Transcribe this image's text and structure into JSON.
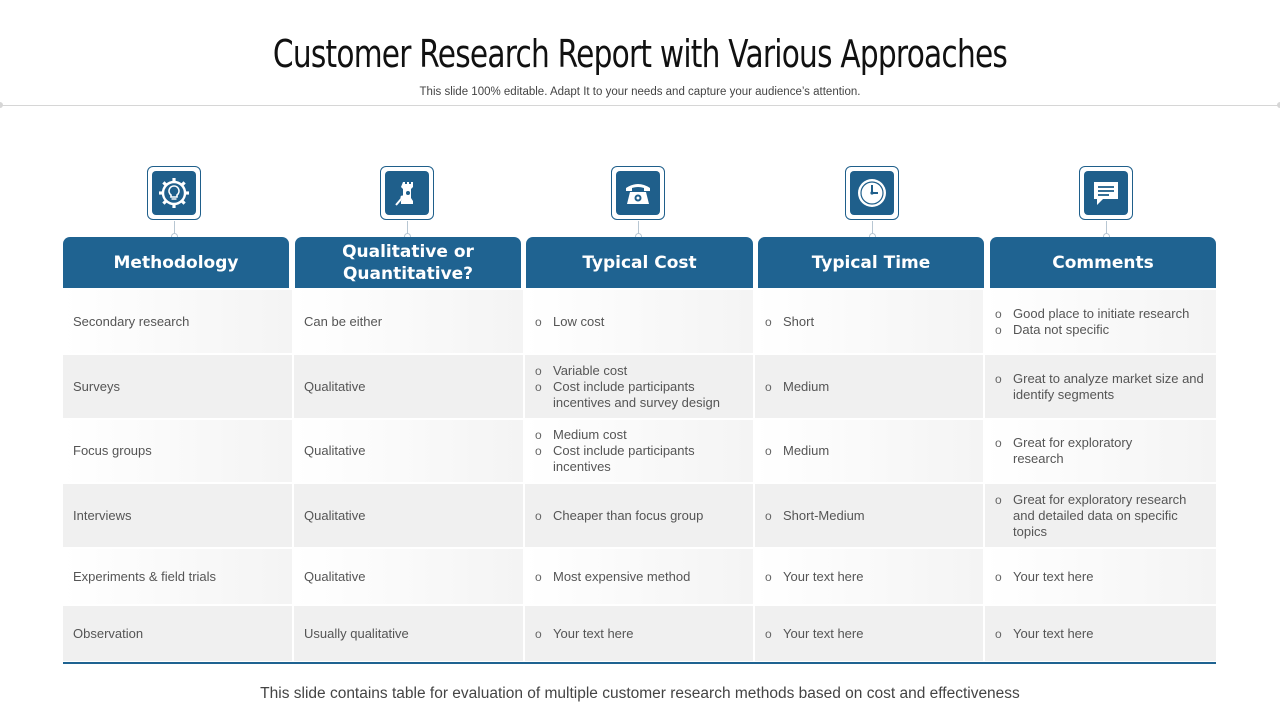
{
  "slide": {
    "title": "Customer Research Report with Various Approaches",
    "subtitle": "This slide 100% editable. Adapt  It to your needs and capture your audience’s attention.",
    "footer": "This slide  contains table for evaluation of multiple customer research  methods based on cost and effectiveness"
  },
  "colors": {
    "header_blue": "#1f6391",
    "row_alt": "#f0f0f0"
  },
  "columns": [
    {
      "label": "Methodology",
      "icon": "gear-lightbulb-icon"
    },
    {
      "label": "Qualitative or Quantitative?",
      "icon": "chess-rook-icon"
    },
    {
      "label": "Typical Cost",
      "icon": "telephone-icon"
    },
    {
      "label": "Typical Time",
      "icon": "clock-icon"
    },
    {
      "label": "Comments",
      "icon": "chat-bubble-icon"
    }
  ],
  "rows": [
    {
      "methodology": "Secondary  research",
      "type": "Can be either",
      "cost": [
        "Low cost"
      ],
      "time": [
        "Short"
      ],
      "comments": [
        "Good place to initiate research",
        "Data not specific"
      ]
    },
    {
      "methodology": "Surveys",
      "type": "Qualitative",
      "cost": [
        "Variable cost",
        "Cost include participants incentives and survey design"
      ],
      "time": [
        "Medium"
      ],
      "comments": [
        "Great  to analyze market size and identify segments"
      ]
    },
    {
      "methodology": "Focus groups",
      "type": "Qualitative",
      "cost": [
        "Medium cost",
        "Cost include participants incentives"
      ],
      "time": [
        "Medium"
      ],
      "comments": [
        "Great for exploratory research"
      ]
    },
    {
      "methodology": "Interviews",
      "type": "Qualitative",
      "cost": [
        "Cheaper than focus group"
      ],
      "time": [
        "Short-Medium"
      ],
      "comments": [
        "Great for exploratory research  and detailed data on specific  topics"
      ]
    },
    {
      "methodology": "Experiments & field trials",
      "type": "Qualitative",
      "cost": [
        "Most expensive  method"
      ],
      "time": [
        "Your text here"
      ],
      "comments": [
        "Your text here"
      ]
    },
    {
      "methodology": "Observation",
      "type": "Usually qualitative",
      "cost": [
        "Your text here"
      ],
      "time": [
        "Your text here"
      ],
      "comments": [
        "Your text here"
      ]
    }
  ]
}
